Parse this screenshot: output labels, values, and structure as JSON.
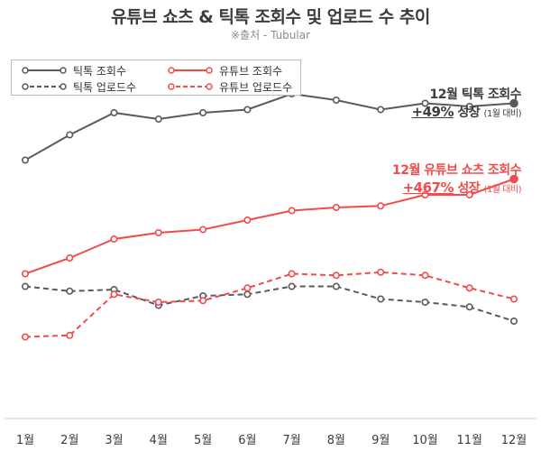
{
  "title": "유튜브 쇼츠 & 틱톡 조회수 및 업로드 수 추이",
  "source": "※출처 - Tubular",
  "colors": {
    "tiktok": "#5a5a5a",
    "youtube": "#f24b4b",
    "axis": "#cccccc"
  },
  "legend": {
    "tiktok_views": "틱톡 조회수",
    "youtube_views": "유튜브 조회수",
    "tiktok_uploads": "틱톡 업로드수",
    "youtube_uploads": "유튜브 업로드수"
  },
  "annotations": {
    "tiktok": {
      "line1": "12월 틱톡 조회수",
      "pct": "+49%",
      "label": " 성장 ",
      "small": "(1월 대비)"
    },
    "youtube": {
      "line1": "12월 유튜브 쇼츠 조회수",
      "pct": "+467%",
      "label": " 성장 ",
      "small": "(1월 대비)"
    }
  },
  "chart_data": {
    "type": "line",
    "title": "유튜브 쇼츠 & 틱톡 조회수 및 업로드 수 추이",
    "categories": [
      "1월",
      "2월",
      "3월",
      "4월",
      "5월",
      "6월",
      "7월",
      "8월",
      "9월",
      "10월",
      "11월",
      "12월"
    ],
    "xlabel": "",
    "ylabel": "",
    "ylim": [
      0,
      100
    ],
    "grid": false,
    "legend_position": "top-left",
    "series": [
      {
        "name": "틱톡 조회수",
        "style": "solid",
        "color": "#5a5a5a",
        "values": [
          75,
          83,
          90,
          88,
          90,
          91,
          96,
          94,
          91,
          93,
          92,
          93
        ]
      },
      {
        "name": "유튜브 조회수",
        "style": "solid",
        "color": "#f24b4b",
        "values": [
          39,
          44,
          50,
          52,
          53,
          56,
          59,
          60,
          60.5,
          64,
          64,
          69
        ]
      },
      {
        "name": "틱톡 업로드수",
        "style": "dashed",
        "color": "#5a5a5a",
        "values": [
          35,
          33.5,
          34,
          29,
          32,
          32.5,
          35,
          35,
          31,
          30,
          28.5,
          24
        ]
      },
      {
        "name": "유튜브 업로드수",
        "style": "dashed",
        "color": "#f24b4b",
        "values": [
          19,
          19.5,
          32.5,
          30,
          30.5,
          34.5,
          39,
          38.5,
          39.5,
          38.5,
          34.5,
          31
        ]
      }
    ]
  }
}
